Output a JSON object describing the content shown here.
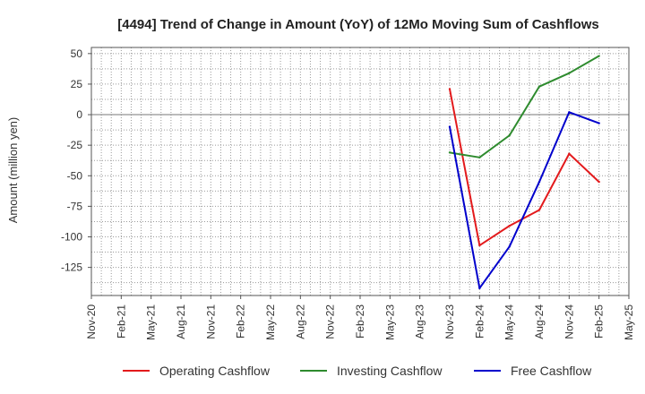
{
  "chart_data": {
    "type": "line",
    "title": "[4494]  Trend of Change in Amount (YoY) of 12Mo Moving Sum of Cashflows",
    "xlabel": "",
    "ylabel": "Amount (million yen)",
    "ylim": [
      -148,
      55
    ],
    "yticks": [
      50,
      25,
      0,
      -25,
      -50,
      -75,
      -100,
      -125
    ],
    "grid": true,
    "legend_position": "bottom",
    "categories": [
      "Nov-20",
      "Feb-21",
      "May-21",
      "Aug-21",
      "Nov-21",
      "Feb-22",
      "May-22",
      "Aug-22",
      "Nov-22",
      "Feb-23",
      "May-23",
      "Aug-23",
      "Nov-23",
      "Feb-24",
      "May-24",
      "Aug-24",
      "Nov-24",
      "Feb-25",
      "May-25"
    ],
    "series": [
      {
        "name": "Operating Cashflow",
        "color": "#e31a1c",
        "values": [
          null,
          null,
          null,
          null,
          null,
          null,
          null,
          null,
          null,
          null,
          null,
          null,
          21,
          -107,
          -91,
          -78,
          -32,
          -55,
          null
        ]
      },
      {
        "name": "Investing Cashflow",
        "color": "#2e8b2e",
        "values": [
          null,
          null,
          null,
          null,
          null,
          null,
          null,
          null,
          null,
          null,
          null,
          null,
          -31,
          -35,
          -17,
          23,
          34,
          48,
          null
        ]
      },
      {
        "name": "Free Cashflow",
        "color": "#0000cc",
        "values": [
          null,
          null,
          null,
          null,
          null,
          null,
          null,
          null,
          null,
          null,
          null,
          null,
          -10,
          -142,
          -108,
          -55,
          2,
          -7,
          null
        ]
      }
    ]
  }
}
